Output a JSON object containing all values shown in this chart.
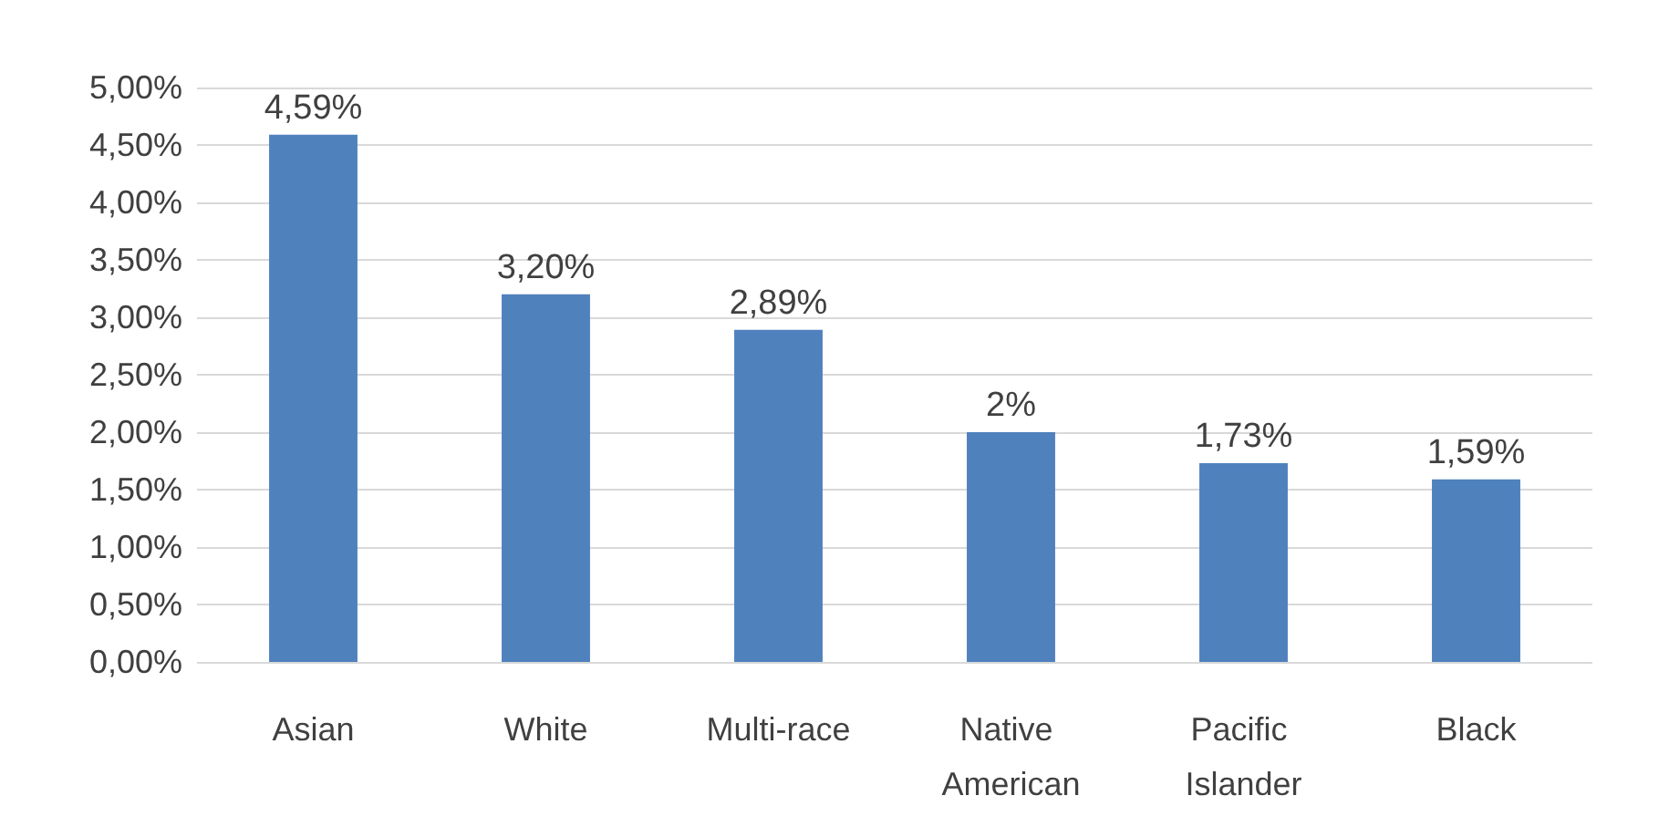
{
  "chart_data": {
    "type": "bar",
    "categories": [
      "Asian",
      "White",
      "Multi-race",
      "Native American",
      "Pacific Islander",
      "Black"
    ],
    "values": [
      4.59,
      3.2,
      2.89,
      2,
      1.73,
      1.59
    ],
    "value_labels": [
      "4,59%",
      "3,20%",
      "2,89%",
      "2%",
      "1,73%",
      "1,59%"
    ],
    "color": "#4f81bd",
    "ylim": [
      0,
      5
    ],
    "yticks": [
      {
        "value": 0,
        "label": "0,00%"
      },
      {
        "value": 0.5,
        "label": "0,50%"
      },
      {
        "value": 1,
        "label": "1,00%"
      },
      {
        "value": 1.5,
        "label": "1,50%"
      },
      {
        "value": 2,
        "label": "2,00%"
      },
      {
        "value": 2.5,
        "label": "2,50%"
      },
      {
        "value": 3,
        "label": "3,00%"
      },
      {
        "value": 3.5,
        "label": "3,50%"
      },
      {
        "value": 4,
        "label": "4,00%"
      },
      {
        "value": 4.5,
        "label": "4,50%"
      },
      {
        "value": 5,
        "label": "5,00%"
      }
    ],
    "grid": true
  }
}
